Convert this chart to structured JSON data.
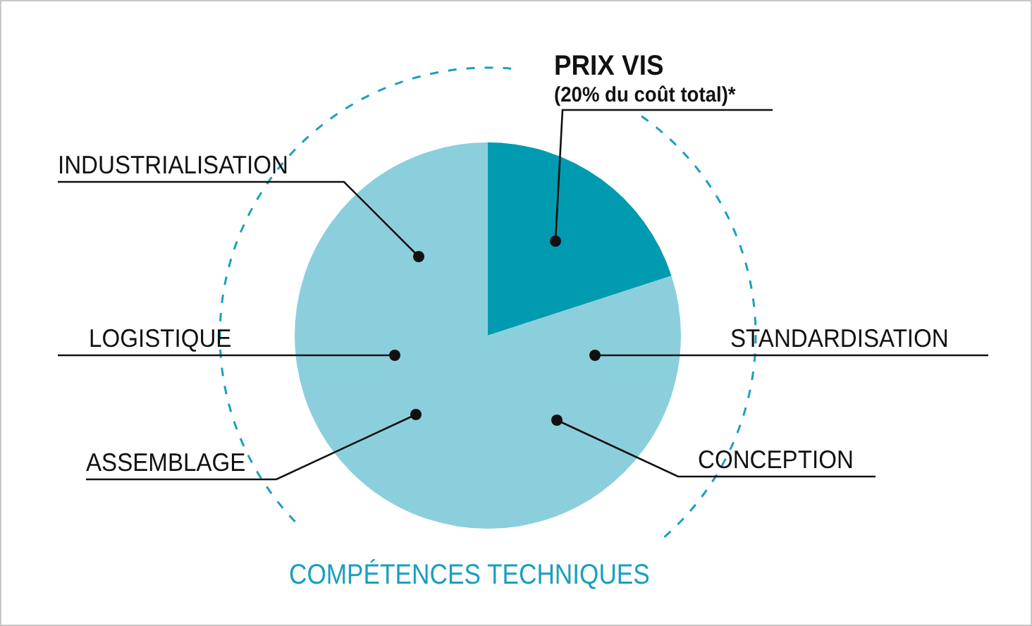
{
  "chart_data": {
    "type": "pie",
    "categories": [
      "PRIX VIS",
      "COMPÉTENCES TECHNIQUES"
    ],
    "values": [
      20,
      80
    ],
    "value_labels": [
      "(20% du coût total)*",
      null
    ],
    "colors": [
      "#009bb0",
      "#8ccfdc"
    ],
    "legend": false,
    "annotations": [
      "INDUSTRIALISATION",
      "LOGISTIQUE",
      "ASSEMBLAGE",
      "STANDARDISATION",
      "CONCEPTION"
    ]
  }
}
